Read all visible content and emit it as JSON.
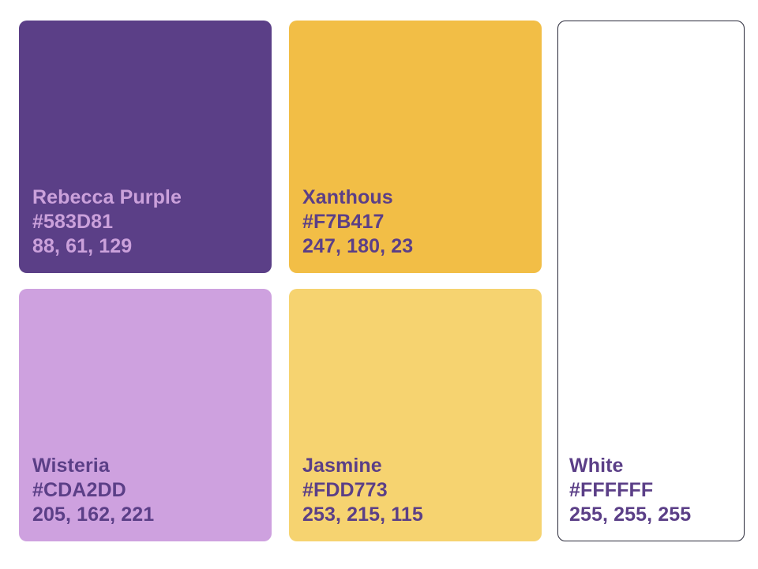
{
  "swatches": [
    {
      "name": "Rebecca Purple",
      "hex": "#583D81",
      "rgb": "88, 61, 129",
      "fill": "#583D81"
    },
    {
      "name": "Xanthous",
      "hex": "#F7B417",
      "rgb": "247, 180, 23",
      "fill": "#F7B417"
    },
    {
      "name": "Wisteria",
      "hex": "#CDA2DD",
      "rgb": "205, 162, 221",
      "fill": "#CDA2DD"
    },
    {
      "name": "Jasmine",
      "hex": "#FDD773",
      "rgb": "253, 215, 115",
      "fill": "#FDD773"
    },
    {
      "name": "White",
      "hex": "#FFFFFF",
      "rgb": "255, 255, 255",
      "fill": "#FFFFFF"
    }
  ]
}
